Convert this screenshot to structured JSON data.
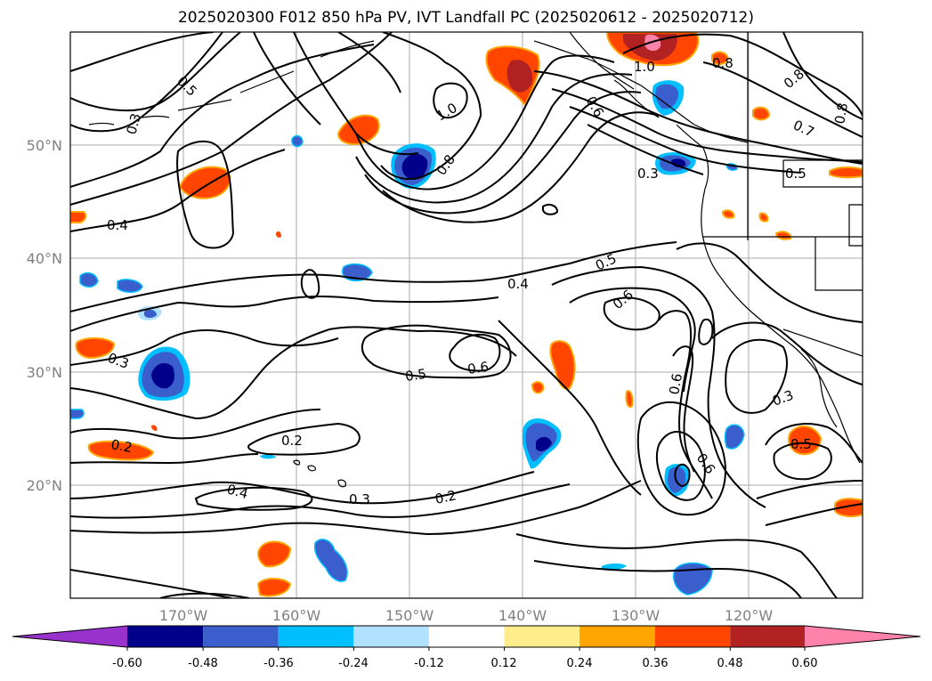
{
  "title": "2025020300 F012 850 hPa PV, IVT Landfall PC (2025020612 - 2025020712)",
  "lon_ticks": [
    "170°W",
    "160°W",
    "150°W",
    "140°W",
    "130°W",
    "120°W"
  ],
  "lat_ticks": [
    "50°N",
    "40°N",
    "30°N",
    "20°N"
  ],
  "colorbar": {
    "colors": [
      "#9932CC",
      "#00008B",
      "#3A5FCD",
      "#00BFFF",
      "#B0E2FF",
      "#FFFFFF",
      "#FFEC8B",
      "#FFA500",
      "#FF4500",
      "#B22222",
      "#FF82AB"
    ],
    "tick_labels": [
      "-0.60",
      "-0.48",
      "-0.36",
      "-0.24",
      "-0.12",
      "0.12",
      "0.24",
      "0.36",
      "0.48",
      "0.60"
    ]
  },
  "contour_labels": [
    "0.5",
    "0.3",
    "0.4",
    "0.4",
    "0.3",
    "0.2",
    "0.2",
    "0.4",
    "0.3",
    "0.2",
    "1.0",
    "0.8",
    "0.6",
    "1.0",
    "0.8",
    "0.8",
    "0.7",
    "0.5",
    "0.3",
    "0.5",
    "0.6",
    "0.5",
    "0.6",
    "0.6",
    "0.6",
    "0.3",
    "0.5",
    "0.8"
  ]
}
